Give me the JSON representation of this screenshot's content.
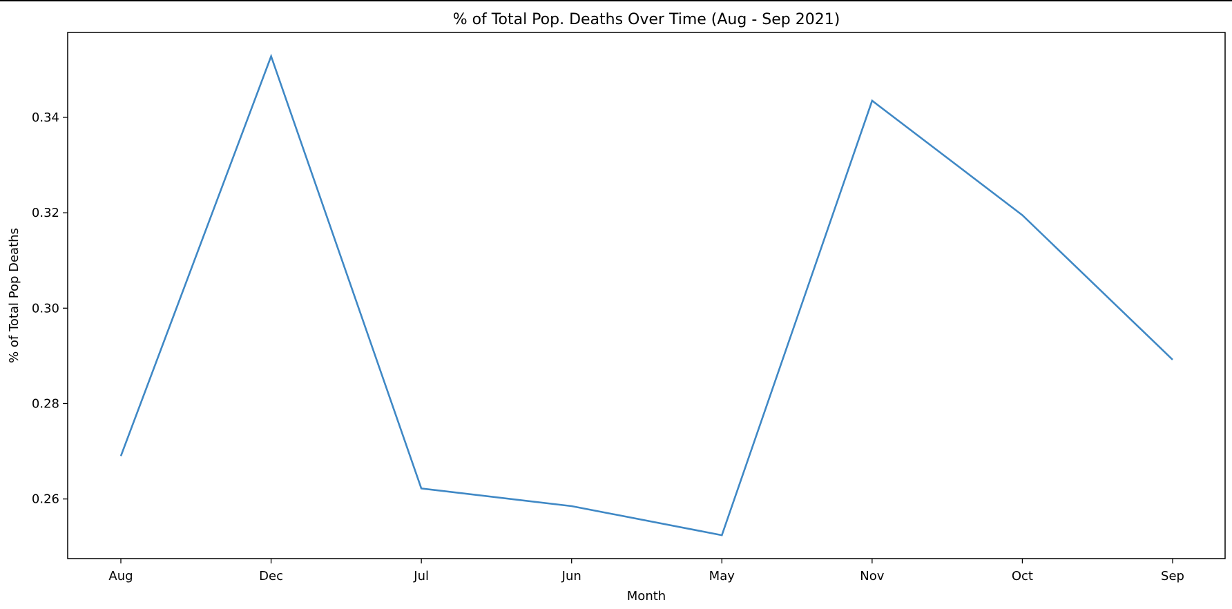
{
  "chart_data": {
    "type": "line",
    "title": "% of Total Pop. Deaths Over Time (Aug - Sep 2021)",
    "xlabel": "Month",
    "ylabel": "% of Total Pop Deaths",
    "categories": [
      "Aug",
      "Dec",
      "Jul",
      "Jun",
      "May",
      "Nov",
      "Oct",
      "Sep"
    ],
    "series": [
      {
        "values": [
          0.269,
          0.3528,
          0.2622,
          0.2585,
          0.2524,
          0.3435,
          0.3195,
          0.2892
        ]
      }
    ],
    "ylim": [
      0.2475,
      0.3578
    ],
    "yticks": [
      "0.26",
      "0.28",
      "0.30",
      "0.32",
      "0.34"
    ],
    "grid": false,
    "line_color": "#3f88c5"
  }
}
